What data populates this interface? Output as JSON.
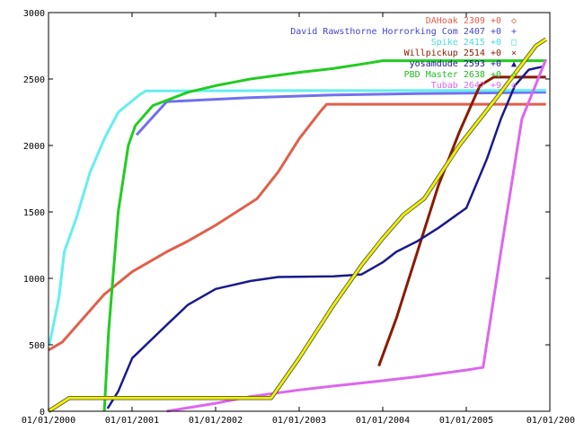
{
  "chart_data": {
    "type": "line",
    "x_type": "date",
    "xlim": [
      "2000-01-01",
      "2006-01-01"
    ],
    "ylim": [
      0,
      3000
    ],
    "yticks": [
      0,
      500,
      1000,
      1500,
      2000,
      2500,
      3000
    ],
    "xticks": [
      "01/01/2000",
      "01/01/2001",
      "01/01/2002",
      "01/01/2003",
      "01/01/2004",
      "01/01/2005",
      "01/01/200"
    ],
    "legend_position": "top-right",
    "series": [
      {
        "name": "DAHoak 2309 +0",
        "color": "#e0604a",
        "marker": "◇",
        "width": 3,
        "points": [
          [
            "2000-01-01",
            460
          ],
          [
            "2000-03-01",
            520
          ],
          [
            "2000-06-01",
            700
          ],
          [
            "2000-09-01",
            880
          ],
          [
            "2001-01-01",
            1050
          ],
          [
            "2001-06-01",
            1200
          ],
          [
            "2001-09-01",
            1280
          ],
          [
            "2002-01-01",
            1400
          ],
          [
            "2002-07-01",
            1600
          ],
          [
            "2002-10-01",
            1800
          ],
          [
            "2003-01-01",
            2050
          ],
          [
            "2003-04-01",
            2250
          ],
          [
            "2003-05-01",
            2310
          ],
          [
            "2005-07-01",
            2310
          ],
          [
            "2005-12-15",
            2310
          ]
        ]
      },
      {
        "name": "David Rawsthorne  Horrorking Com 2407 +0",
        "color": "#7070ee",
        "marker": "+",
        "width": 3,
        "points": [
          [
            "2001-01-20",
            2080
          ],
          [
            "2001-06-01",
            2330
          ],
          [
            "2002-06-01",
            2360
          ],
          [
            "2003-06-01",
            2380
          ],
          [
            "2004-06-01",
            2390
          ],
          [
            "2005-12-15",
            2400
          ]
        ]
      },
      {
        "name": "Spike 2415 +0",
        "color": "#66eeee",
        "marker": "□",
        "width": 3,
        "points": [
          [
            "2000-01-05",
            500
          ],
          [
            "2000-02-15",
            850
          ],
          [
            "2000-03-10",
            1200
          ],
          [
            "2000-05-01",
            1450
          ],
          [
            "2000-07-01",
            1800
          ],
          [
            "2000-09-01",
            2050
          ],
          [
            "2000-11-01",
            2250
          ],
          [
            "2001-02-01",
            2380
          ],
          [
            "2001-03-01",
            2410
          ],
          [
            "2003-01-01",
            2413
          ],
          [
            "2005-12-15",
            2415
          ]
        ]
      },
      {
        "name": "Willpickup 2514 +0",
        "color": "#8b1a00",
        "marker": "×",
        "width": 3,
        "points": [
          [
            "2003-12-15",
            340
          ],
          [
            "2004-03-01",
            700
          ],
          [
            "2004-06-01",
            1200
          ],
          [
            "2004-09-01",
            1700
          ],
          [
            "2004-12-01",
            2100
          ],
          [
            "2005-03-01",
            2450
          ],
          [
            "2005-05-01",
            2514
          ],
          [
            "2005-12-15",
            2514
          ]
        ]
      },
      {
        "name": "yosamdude 2593 +0",
        "color": "#1a1a8c",
        "marker": "▲",
        "width": 2.5,
        "points": [
          [
            "2000-09-15",
            20
          ],
          [
            "2000-11-01",
            150
          ],
          [
            "2001-01-01",
            400
          ],
          [
            "2001-06-01",
            650
          ],
          [
            "2001-09-01",
            800
          ],
          [
            "2002-01-01",
            920
          ],
          [
            "2002-06-01",
            980
          ],
          [
            "2002-10-01",
            1010
          ],
          [
            "2003-06-01",
            1015
          ],
          [
            "2003-10-01",
            1030
          ],
          [
            "2004-01-01",
            1120
          ],
          [
            "2004-03-01",
            1200
          ],
          [
            "2004-06-01",
            1280
          ],
          [
            "2004-09-01",
            1380
          ],
          [
            "2005-01-01",
            1530
          ],
          [
            "2005-04-01",
            1900
          ],
          [
            "2005-06-01",
            2200
          ],
          [
            "2005-08-01",
            2450
          ],
          [
            "2005-10-01",
            2570
          ],
          [
            "2005-12-01",
            2593
          ]
        ]
      },
      {
        "name": "PBD Master 2638 +0",
        "color": "#22cc22",
        "marker": "◇",
        "width": 3,
        "points": [
          [
            "2000-09-01",
            0
          ],
          [
            "2000-09-20",
            600
          ],
          [
            "2000-11-01",
            1500
          ],
          [
            "2000-12-15",
            2000
          ],
          [
            "2001-01-15",
            2150
          ],
          [
            "2001-04-01",
            2300
          ],
          [
            "2001-09-01",
            2400
          ],
          [
            "2002-01-01",
            2450
          ],
          [
            "2002-06-01",
            2500
          ],
          [
            "2003-01-01",
            2550
          ],
          [
            "2003-06-01",
            2580
          ],
          [
            "2003-11-01",
            2620
          ],
          [
            "2004-01-01",
            2638
          ],
          [
            "2005-12-15",
            2638
          ]
        ]
      },
      {
        "name": "Tubab 2647 +9",
        "color": "#dd66ee",
        "marker": "◇",
        "width": 3,
        "points": [
          [
            "2001-06-01",
            0
          ],
          [
            "2002-01-01",
            60
          ],
          [
            "2002-06-01",
            110
          ],
          [
            "2003-01-01",
            160
          ],
          [
            "2003-06-01",
            190
          ],
          [
            "2004-01-01",
            230
          ],
          [
            "2004-06-01",
            260
          ],
          [
            "2005-01-01",
            310
          ],
          [
            "2005-03-15",
            330
          ],
          [
            "2005-06-01",
            1200
          ],
          [
            "2005-09-01",
            2200
          ],
          [
            "2005-12-15",
            2647
          ]
        ]
      },
      {
        "name": "",
        "color": "#eeee00",
        "marker": "",
        "width": 3,
        "outline": "#444444",
        "points": [
          [
            "2000-01-01",
            0
          ],
          [
            "2000-04-01",
            100
          ],
          [
            "2002-09-01",
            100
          ],
          [
            "2003-01-01",
            400
          ],
          [
            "2003-06-01",
            800
          ],
          [
            "2003-10-01",
            1100
          ],
          [
            "2004-01-01",
            1300
          ],
          [
            "2004-04-01",
            1480
          ],
          [
            "2004-07-01",
            1600
          ],
          [
            "2004-12-01",
            2000
          ],
          [
            "2005-06-01",
            2400
          ],
          [
            "2005-11-01",
            2750
          ],
          [
            "2005-12-15",
            2800
          ]
        ]
      }
    ],
    "legend": [
      {
        "text": "DAHoak 2309 +0",
        "color": "#e0604a",
        "marker": "◇"
      },
      {
        "text": "David Rawsthorne  Horrorking Com 2407 +0",
        "color": "#4444cc",
        "marker": "+"
      },
      {
        "text": "Spike 2415 +0",
        "color": "#44dddd",
        "marker": "□"
      },
      {
        "text": "Willpickup 2514 +0",
        "color": "#8b1a00",
        "marker": "×"
      },
      {
        "text": "yosamdude 2593 +0",
        "color": "#1a1a8c",
        "marker": "▲"
      },
      {
        "text": "PBD Master 2638 +0",
        "color": "#22bb22",
        "marker": "◇"
      },
      {
        "text": "Tubab 2647 +9",
        "color": "#dd66ee",
        "marker": "◇"
      }
    ]
  }
}
